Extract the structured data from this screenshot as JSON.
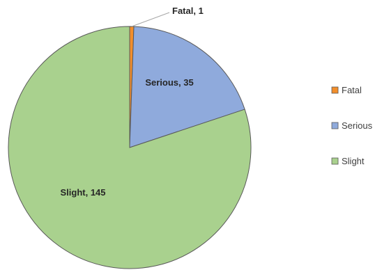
{
  "chart_data": {
    "type": "pie",
    "categories": [
      "Fatal",
      "Serious",
      "Slight"
    ],
    "values": [
      1,
      35,
      145
    ],
    "colors": [
      "#F28E2B",
      "#8FAADC",
      "#A9D18E"
    ],
    "data_labels": [
      "Fatal, 1",
      "Serious, 35",
      "Slight, 145"
    ],
    "title": "",
    "legend_position": "right",
    "start_angle": "top",
    "direction": "clockwise"
  }
}
